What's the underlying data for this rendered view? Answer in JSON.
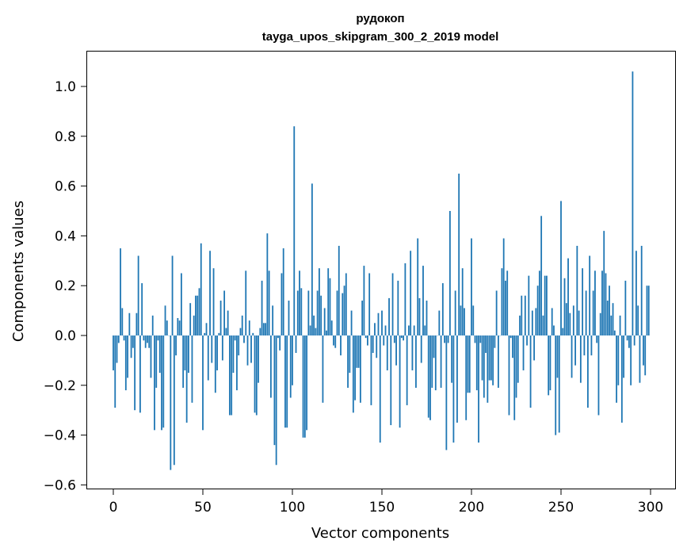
{
  "chart_data": {
    "type": "bar",
    "title_line1": "рудокоп",
    "title_line2": "tayga_upos_skipgram_300_2_2019 model",
    "xlabel": "Vector components",
    "ylabel": "Components values",
    "xlim": [
      -15,
      315
    ],
    "ylim": [
      -0.62,
      1.14
    ],
    "xticks": [
      0,
      50,
      100,
      150,
      200,
      250,
      300
    ],
    "xtick_labels": [
      "0",
      "50",
      "100",
      "150",
      "200",
      "250",
      "300"
    ],
    "yticks": [
      -0.6,
      -0.4,
      -0.2,
      0.0,
      0.2,
      0.4,
      0.6,
      0.8,
      1.0
    ],
    "ytick_labels": [
      "−0.6",
      "−0.4",
      "−0.2",
      "0.0",
      "0.2",
      "0.4",
      "0.6",
      "0.8",
      "1.0"
    ],
    "grid": false,
    "bar_color": "#1f77b4",
    "values": [
      -0.14,
      -0.29,
      -0.11,
      -0.03,
      0.35,
      0.11,
      -0.02,
      -0.22,
      -0.17,
      0.09,
      -0.09,
      -0.05,
      -0.3,
      0.09,
      0.32,
      -0.31,
      0.21,
      -0.02,
      -0.05,
      -0.03,
      -0.05,
      -0.17,
      0.08,
      -0.38,
      -0.21,
      -0.02,
      -0.15,
      -0.38,
      -0.37,
      0.12,
      0.06,
      0.0,
      -0.54,
      0.32,
      -0.52,
      -0.08,
      0.07,
      0.06,
      0.25,
      -0.21,
      -0.14,
      -0.35,
      -0.15,
      0.13,
      -0.27,
      0.08,
      0.16,
      0.16,
      0.19,
      0.37,
      -0.38,
      0.01,
      0.05,
      -0.18,
      0.34,
      -0.11,
      0.27,
      -0.23,
      -0.14,
      0.01,
      0.14,
      -0.1,
      0.18,
      0.03,
      0.1,
      -0.32,
      -0.32,
      -0.15,
      -0.02,
      -0.22,
      -0.08,
      0.03,
      0.08,
      -0.03,
      0.26,
      -0.12,
      0.06,
      -0.11,
      0.01,
      -0.31,
      -0.32,
      -0.19,
      0.03,
      0.22,
      0.05,
      0.05,
      0.41,
      0.26,
      -0.25,
      0.12,
      -0.44,
      -0.52,
      -0.01,
      -0.06,
      0.25,
      0.35,
      -0.37,
      -0.37,
      0.14,
      -0.25,
      -0.2,
      0.84,
      -0.07,
      0.18,
      0.26,
      0.19,
      -0.41,
      -0.41,
      -0.38,
      0.18,
      0.04,
      0.61,
      0.08,
      0.03,
      0.18,
      0.27,
      0.16,
      -0.27,
      0.11,
      0.02,
      0.27,
      0.23,
      0.06,
      -0.04,
      -0.05,
      0.18,
      0.36,
      -0.08,
      0.17,
      0.2,
      0.25,
      -0.21,
      -0.15,
      0.1,
      -0.31,
      -0.26,
      -0.13,
      -0.13,
      -0.27,
      0.14,
      0.28,
      -0.01,
      -0.04,
      0.25,
      -0.28,
      -0.07,
      0.05,
      -0.09,
      0.09,
      -0.43,
      0.1,
      -0.04,
      0.04,
      -0.14,
      0.15,
      -0.36,
      0.25,
      -0.03,
      -0.12,
      0.22,
      -0.37,
      -0.01,
      -0.02,
      0.29,
      -0.28,
      0.04,
      0.34,
      -0.14,
      0.04,
      -0.21,
      0.39,
      0.15,
      -0.11,
      0.28,
      0.04,
      0.14,
      -0.33,
      -0.34,
      -0.21,
      -0.09,
      -0.22,
      0.0,
      0.1,
      -0.21,
      0.21,
      -0.03,
      -0.46,
      -0.03,
      0.5,
      -0.19,
      -0.43,
      0.18,
      -0.35,
      0.65,
      0.12,
      0.27,
      0.11,
      -0.34,
      -0.23,
      -0.23,
      0.39,
      0.12,
      -0.03,
      -0.22,
      -0.43,
      -0.03,
      -0.18,
      -0.25,
      -0.07,
      -0.27,
      -0.18,
      -0.18,
      -0.2,
      -0.05,
      0.18,
      -0.21,
      0.0,
      0.27,
      0.39,
      0.22,
      0.26,
      -0.32,
      -0.01,
      -0.09,
      -0.34,
      -0.25,
      -0.19,
      0.08,
      0.16,
      -0.14,
      0.16,
      -0.04,
      0.24,
      -0.29,
      0.1,
      -0.1,
      0.11,
      0.2,
      0.26,
      0.48,
      0.08,
      0.24,
      0.24,
      -0.24,
      -0.22,
      0.11,
      0.04,
      -0.4,
      -0.17,
      -0.39,
      0.54,
      0.03,
      0.23,
      0.13,
      0.31,
      0.09,
      -0.17,
      0.12,
      -0.12,
      0.36,
      0.1,
      -0.19,
      0.27,
      -0.08,
      0.18,
      -0.29,
      0.32,
      -0.08,
      0.18,
      0.26,
      -0.03,
      -0.32,
      0.09,
      0.26,
      0.42,
      0.25,
      0.14,
      0.2,
      0.08,
      0.13,
      0.02,
      -0.27,
      -0.2,
      0.08,
      -0.35,
      -0.17,
      0.22,
      -0.02,
      -0.05,
      -0.2,
      1.06,
      -0.04,
      0.34,
      0.12,
      -0.19,
      0.36,
      -0.12,
      -0.16,
      0.2,
      0.2
    ]
  }
}
